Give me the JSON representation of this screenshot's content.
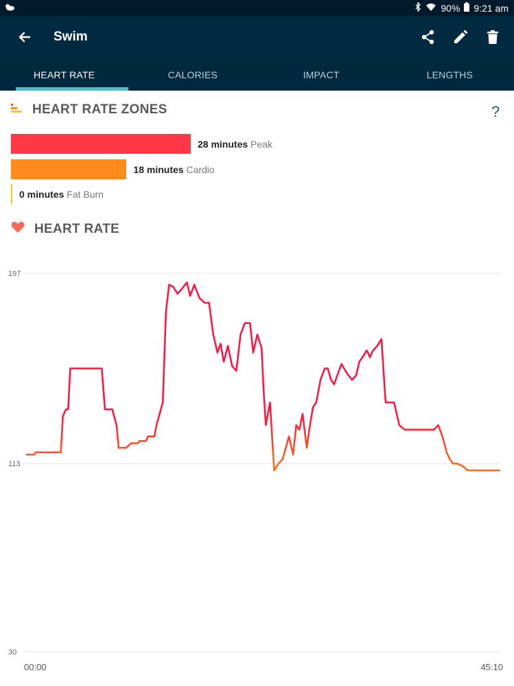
{
  "status_bar": {
    "battery": "90%",
    "time": "9:21 am",
    "icons": [
      "weather-cloud-icon",
      "bluetooth-icon",
      "wifi-icon",
      "battery-icon"
    ]
  },
  "app_bar": {
    "title": "Swim",
    "actions": [
      "share-icon",
      "edit-pencil-icon",
      "delete-trash-icon"
    ]
  },
  "tabs": [
    {
      "label": "HEART RATE",
      "active": true
    },
    {
      "label": "CALORIES",
      "active": false
    },
    {
      "label": "IMPACT",
      "active": false
    },
    {
      "label": "LENGTHS",
      "active": false
    }
  ],
  "zones_section": {
    "title": "HEART RATE ZONES",
    "help": "?"
  },
  "zones": [
    {
      "minutes": "28 minutes",
      "name": "Peak",
      "color": "#ff3747",
      "value": 28
    },
    {
      "minutes": "18 minutes",
      "name": "Cardio",
      "color": "#ff8b1e",
      "value": 18
    },
    {
      "minutes": "0 minutes",
      "name": "Fat Burn",
      "color": "#f6c431",
      "value": 0
    }
  ],
  "heart_section": {
    "title": "HEART RATE"
  },
  "chart_data": {
    "type": "line",
    "ytick_labels": [
      "197",
      "113",
      "30"
    ],
    "xtick_labels": [
      "00:00",
      "45:10"
    ],
    "y_ticks": [
      197,
      113,
      30
    ],
    "ylim": [
      30,
      197
    ],
    "xlim": [
      0,
      45.17
    ],
    "grid": true,
    "colors": {
      "high": "#ff1744",
      "low": "#ff6a1a"
    },
    "series": [
      {
        "x": [
          0,
          0.8,
          0.9,
          3.3,
          3.5,
          3.8,
          4.0,
          4.2,
          4.6,
          5.2,
          7.2,
          7.5,
          8.2,
          8.6,
          8.8,
          9.5,
          10.0,
          10.6,
          10.8,
          11.4,
          11.6,
          12.2,
          12.4,
          13.0,
          13.3,
          13.6,
          14.0,
          14.4,
          14.8,
          15.3,
          15.6,
          16.0,
          16.5,
          17.0,
          17.4,
          17.8,
          18.0,
          18.2,
          18.5,
          18.8,
          19.2,
          19.6,
          20.0,
          20.4,
          20.8,
          21.3,
          21.6,
          22.0,
          22.4,
          22.6,
          22.8,
          23.2,
          23.6,
          24.0,
          24.4,
          24.7,
          25.0,
          25.4,
          25.7,
          26.0,
          26.3,
          26.7,
          27.0,
          27.3,
          27.6,
          28.0,
          28.4,
          28.7,
          29.0,
          29.3,
          29.6,
          30.0,
          30.5,
          31.0,
          31.4,
          31.7,
          32.0,
          32.4,
          32.7,
          33.0,
          33.4,
          33.8,
          34.2,
          34.6,
          35.0,
          35.5,
          36.0,
          36.4,
          36.8,
          37.2,
          37.6,
          37.9,
          38.2,
          38.5,
          38.8,
          39.2,
          39.6,
          40.0,
          40.3,
          40.6,
          41.0,
          41.5,
          42.0,
          42.4,
          42.7,
          43.0,
          43.3,
          43.6,
          44.0,
          44.4,
          44.7,
          45.1
        ],
        "y": [
          117,
          117,
          118,
          118,
          134,
          137,
          137,
          155,
          155,
          155,
          155,
          137,
          137,
          130,
          120,
          120,
          122,
          122,
          123,
          123,
          125,
          125,
          130,
          140,
          180,
          192,
          191,
          188,
          190,
          193,
          187,
          192,
          186,
          184,
          184,
          170,
          166,
          162,
          166,
          158,
          165,
          156,
          154,
          170,
          175,
          175,
          162,
          170,
          164,
          145,
          130,
          140,
          110,
          113,
          115,
          120,
          125,
          117,
          130,
          128,
          135,
          120,
          130,
          138,
          140,
          150,
          155,
          155,
          150,
          148,
          152,
          157,
          153,
          150,
          152,
          158,
          160,
          163,
          160,
          163,
          165,
          168,
          140,
          140,
          140,
          130,
          128,
          128,
          128,
          128,
          128,
          128,
          128,
          128,
          128,
          130,
          125,
          118,
          115,
          113,
          113,
          112,
          110,
          110,
          110,
          110,
          110,
          110,
          110,
          110,
          110,
          110
        ]
      }
    ]
  }
}
